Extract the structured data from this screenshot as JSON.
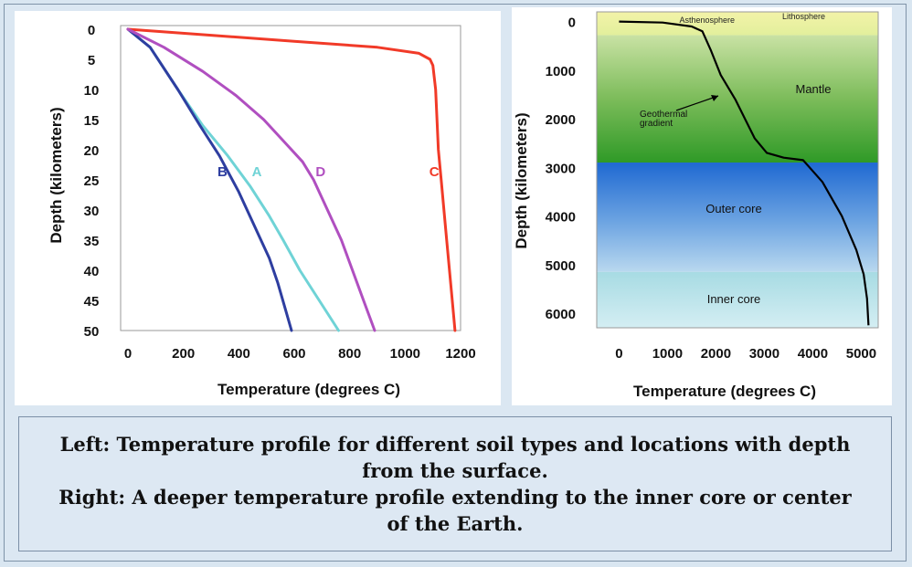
{
  "caption": {
    "line1": "Left: Temperature profile for different soil types and locations with depth",
    "line2": "from the surface.",
    "line3": "Right: A deeper temperature profile extending to the inner core or center",
    "line4": "of the Earth."
  },
  "chart_data": [
    {
      "type": "line",
      "title": "",
      "xlabel": "Temperature (degrees C)",
      "ylabel": "Depth (kilometers)",
      "xlim": [
        0,
        1200
      ],
      "ylim": [
        0,
        50
      ],
      "y_inverted": true,
      "xticks": [
        "0",
        "200",
        "400",
        "600",
        "800",
        "1000",
        "1200"
      ],
      "yticks": [
        "0",
        "5",
        "10",
        "15",
        "20",
        "25",
        "30",
        "35",
        "40",
        "45",
        "50"
      ],
      "grid": false,
      "series": [
        {
          "name": "A",
          "color": "#6fd3d6",
          "points": [
            [
              0,
              0
            ],
            [
              80,
              3
            ],
            [
              180,
              10
            ],
            [
              270,
              16
            ],
            [
              360,
              21
            ],
            [
              440,
              26
            ],
            [
              510,
              31
            ],
            [
              560,
              35
            ],
            [
              620,
              40
            ],
            [
              690,
              45
            ],
            [
              760,
              50
            ]
          ]
        },
        {
          "name": "B",
          "color": "#2e3ea0",
          "points": [
            [
              0,
              0
            ],
            [
              80,
              3
            ],
            [
              180,
              10
            ],
            [
              260,
              16
            ],
            [
              330,
              21
            ],
            [
              400,
              27
            ],
            [
              460,
              33
            ],
            [
              510,
              38
            ],
            [
              540,
              42
            ],
            [
              565,
              46
            ],
            [
              590,
              50
            ]
          ]
        },
        {
          "name": "C",
          "color": "#f13a28",
          "points": [
            [
              0,
              0
            ],
            [
              300,
              1
            ],
            [
              600,
              2
            ],
            [
              900,
              3
            ],
            [
              1050,
              4
            ],
            [
              1090,
              5
            ],
            [
              1100,
              6
            ],
            [
              1110,
              10
            ],
            [
              1120,
              20
            ],
            [
              1130,
              25
            ],
            [
              1150,
              35
            ],
            [
              1170,
              45
            ],
            [
              1180,
              50
            ]
          ]
        },
        {
          "name": "D",
          "color": "#b04fc0",
          "points": [
            [
              0,
              0
            ],
            [
              130,
              3
            ],
            [
              270,
              7
            ],
            [
              390,
              11
            ],
            [
              490,
              15
            ],
            [
              570,
              19
            ],
            [
              630,
              22
            ],
            [
              670,
              25
            ],
            [
              720,
              30
            ],
            [
              770,
              35
            ],
            [
              810,
              40
            ],
            [
              850,
              45
            ],
            [
              890,
              50
            ]
          ]
        }
      ]
    },
    {
      "type": "line",
      "title": "",
      "xlabel": "Temperature (degrees C)",
      "ylabel": "Depth (kilometers)",
      "xlim": [
        0,
        5500
      ],
      "ylim": [
        0,
        6300
      ],
      "y_inverted": true,
      "xticks": [
        "0",
        "1000",
        "2000",
        "3000",
        "4000",
        "5000"
      ],
      "yticks": [
        "0",
        "1000",
        "2000",
        "3000",
        "4000",
        "5000",
        "6000"
      ],
      "grid": false,
      "layers": [
        {
          "name": "Asthenosphere",
          "from": 0,
          "to": 280
        },
        {
          "name": "Lithosphere",
          "from": 0,
          "to": 280
        },
        {
          "name": "Mantle",
          "from": 280,
          "to": 2900
        },
        {
          "name": "Outer core",
          "from": 2900,
          "to": 5150
        },
        {
          "name": "Inner core",
          "from": 5150,
          "to": 6300
        }
      ],
      "annotation": {
        "line1": "Geothermal",
        "line2": "gradient"
      },
      "series": [
        {
          "name": "",
          "color": "#000000",
          "points": [
            [
              0,
              0
            ],
            [
              900,
              20
            ],
            [
              1500,
              100
            ],
            [
              1720,
              200
            ],
            [
              1900,
              600
            ],
            [
              2100,
              1100
            ],
            [
              2400,
              1600
            ],
            [
              2600,
              2000
            ],
            [
              2800,
              2400
            ],
            [
              3050,
              2700
            ],
            [
              3400,
              2800
            ],
            [
              3800,
              2850
            ],
            [
              4200,
              3300
            ],
            [
              4600,
              4000
            ],
            [
              4900,
              4700
            ],
            [
              5050,
              5200
            ],
            [
              5120,
              5700
            ],
            [
              5150,
              6250
            ]
          ]
        }
      ]
    }
  ]
}
